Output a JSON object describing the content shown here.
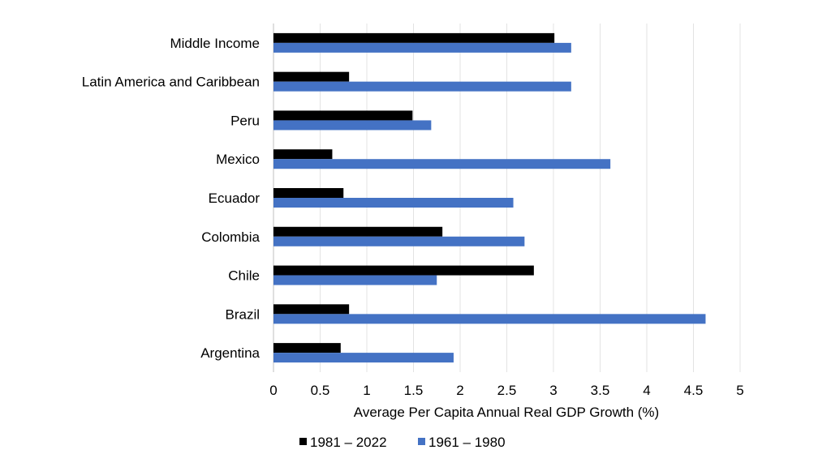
{
  "chart_data": {
    "type": "bar",
    "orientation": "horizontal",
    "title": "",
    "xlabel": "Average Per Capita Annual Real GDP Growth (%)",
    "ylabel": "",
    "xlim": [
      0,
      5
    ],
    "xticks": [
      0,
      0.5,
      1,
      1.5,
      2,
      2.5,
      3,
      3.5,
      4,
      4.5,
      5
    ],
    "xtick_labels": [
      "0",
      "0.5",
      "1",
      "1.5",
      "2",
      "2.5",
      "3",
      "3.5",
      "4",
      "4.5",
      "5"
    ],
    "grid": "vertical",
    "legend_position": "bottom",
    "categories": [
      "Middle Income",
      "Latin America and Caribbean",
      "Peru",
      "Mexico",
      "Ecuador",
      "Colombia",
      "Chile",
      "Brazil",
      "Argentina"
    ],
    "series": [
      {
        "name": "1981 – 2022",
        "color": "#000000",
        "values": [
          3.01,
          0.81,
          1.49,
          0.63,
          0.75,
          1.81,
          2.79,
          0.81,
          0.72
        ]
      },
      {
        "name": "1961 – 1980",
        "color": "#4472C4",
        "values": [
          3.19,
          3.19,
          1.69,
          3.61,
          2.57,
          2.69,
          1.75,
          4.63,
          1.93
        ]
      }
    ]
  }
}
